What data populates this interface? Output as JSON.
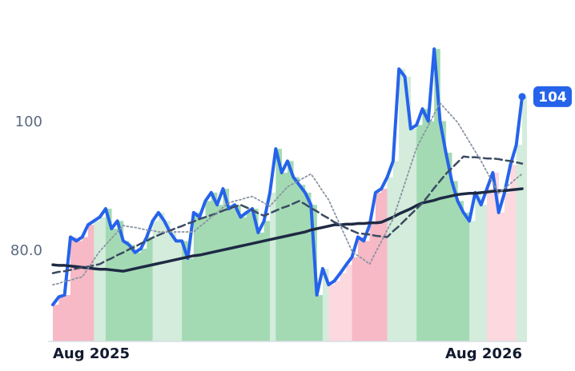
{
  "chart_data": {
    "type": "line",
    "categories": [
      "Aug 2025",
      null,
      null,
      null,
      null,
      null,
      null,
      null,
      null,
      null,
      null,
      null,
      null,
      null,
      null,
      null,
      null,
      null,
      null,
      null,
      null,
      null,
      null,
      null,
      null,
      null,
      null,
      null,
      null,
      null,
      null,
      null,
      null,
      null,
      null,
      null,
      null,
      null,
      null,
      null,
      null,
      null,
      null,
      null,
      null,
      null,
      null,
      null,
      null,
      null,
      null,
      null,
      null,
      null,
      null,
      null,
      null,
      null,
      null,
      null,
      null,
      null,
      null,
      null,
      null,
      null,
      null,
      null,
      null,
      null,
      null,
      null,
      null,
      null,
      null,
      null,
      null,
      null,
      null,
      null,
      "Aug 2026"
    ],
    "ylim": [
      66,
      119
    ],
    "yticks": [
      {
        "value": 80,
        "label": "80.0"
      },
      100
    ],
    "bar_colors": [
      "#f6b9c5",
      "#f6b9c5",
      "#f6b9c5",
      "#f6b9c5",
      "#f6b9c5",
      "#f6b9c5",
      "#f6b9c5",
      "#d3ecdb",
      "#d3ecdb",
      "#a3dab3",
      "#a3dab3",
      "#a3dab3",
      "#a3dab3",
      "#a3dab3",
      "#a3dab3",
      "#a3dab3",
      "#a3dab3",
      "#d3ecdb",
      "#d3ecdb",
      "#d3ecdb",
      "#d3ecdb",
      "#d3ecdb",
      "#a3dab3",
      "#a3dab3",
      "#a3dab3",
      "#a3dab3",
      "#a3dab3",
      "#a3dab3",
      "#a3dab3",
      "#a3dab3",
      "#a3dab3",
      "#a3dab3",
      "#a3dab3",
      "#a3dab3",
      "#a3dab3",
      "#a3dab3",
      "#a3dab3",
      "#d3ecdb",
      "#a3dab3",
      "#a3dab3",
      "#a3dab3",
      "#a3dab3",
      "#a3dab3",
      "#a3dab3",
      "#a3dab3",
      "#a3dab3",
      "#d3ecdb",
      "#fcd8df",
      "#fcd8df",
      "#fcd8df",
      "#fcd8df",
      "#f6b9c5",
      "#f6b9c5",
      "#f6b9c5",
      "#f6b9c5",
      "#f6b9c5",
      "#f6b9c5",
      "#d3ecdb",
      "#d3ecdb",
      "#d3ecdb",
      "#d3ecdb",
      "#d3ecdb",
      "#a3dab3",
      "#a3dab3",
      "#a3dab3",
      "#a3dab3",
      "#a3dab3",
      "#a3dab3",
      "#a3dab3",
      "#a3dab3",
      "#a3dab3",
      "#d3ecdb",
      "#d3ecdb",
      "#d3ecdb",
      "#fcd8df",
      "#fcd8df",
      "#fcd8df",
      "#fcd8df",
      "#fcd8df",
      "#d3ecdb",
      "#d3ecdb"
    ],
    "series": [
      {
        "color": "#2563eb",
        "style": "solid",
        "width": 4,
        "bars": true,
        "values": [
          71.7,
          72.9,
          73.2,
          82.2,
          81.6,
          82.2,
          84.1,
          84.7,
          85.3,
          86.6,
          83.5,
          84.7,
          81.6,
          81.0,
          79.8,
          80.4,
          82.2,
          84.7,
          86.0,
          84.7,
          82.9,
          81.6,
          81.6,
          78.9,
          86.0,
          85.3,
          87.8,
          89.1,
          87.2,
          89.7,
          86.6,
          87.2,
          85.3,
          86.0,
          86.6,
          82.9,
          84.7,
          89.1,
          95.9,
          92.2,
          94.0,
          91.5,
          90.3,
          89.1,
          87.2,
          73.2,
          77.3,
          74.8,
          75.4,
          76.6,
          77.9,
          79.1,
          82.2,
          81.6,
          84.1,
          89.1,
          89.7,
          91.5,
          94.0,
          108.3,
          107.1,
          99.0,
          99.6,
          102.1,
          100.2,
          111.4,
          100.2,
          95.3,
          90.9,
          87.8,
          86.0,
          84.7,
          89.1,
          87.2,
          89.7,
          92.2,
          86.0,
          89.1,
          93.4,
          96.5,
          104
        ]
      },
      {
        "color": "#1e2a44",
        "style": "solid",
        "width": 3.5,
        "bars": false,
        "values": [
          77.9,
          77.8,
          77.8,
          77.7,
          77.6,
          77.5,
          77.4,
          77.3,
          77.2,
          77.2,
          77.1,
          77.0,
          76.9,
          77.1,
          77.3,
          77.5,
          77.7,
          77.9,
          78.1,
          78.3,
          78.5,
          78.7,
          78.9,
          79.1,
          79.3,
          79.4,
          79.6,
          79.8,
          80.0,
          80.2,
          80.4,
          80.6,
          80.8,
          81.0,
          81.2,
          81.4,
          81.6,
          81.8,
          82.0,
          82.2,
          82.4,
          82.6,
          82.8,
          83.0,
          83.3,
          83.5,
          83.7,
          83.9,
          84.1,
          84.1,
          84.2,
          84.2,
          84.3,
          84.3,
          84.4,
          84.4,
          84.5,
          84.9,
          85.3,
          85.8,
          86.2,
          86.6,
          87.1,
          87.5,
          87.7,
          87.9,
          88.2,
          88.4,
          88.6,
          88.8,
          88.9,
          89.0,
          89.0,
          89.1,
          89.2,
          89.3,
          89.4,
          89.4,
          89.5,
          89.6,
          89.7
        ]
      },
      {
        "color": "#3b4a63",
        "style": "dashed",
        "width": 2.5,
        "bars": false,
        "values": [
          76.6,
          76.8,
          76.9,
          77.1,
          77.3,
          77.5,
          77.6,
          77.8,
          78.0,
          78.5,
          78.9,
          79.4,
          79.8,
          80.3,
          80.7,
          81.2,
          81.6,
          82.1,
          82.5,
          82.9,
          83.2,
          83.6,
          83.9,
          84.3,
          84.6,
          85.0,
          85.3,
          85.6,
          85.9,
          86.3,
          86.6,
          86.9,
          87.2,
          86.8,
          86.4,
          85.9,
          85.5,
          85.9,
          86.3,
          86.7,
          87.0,
          87.4,
          87.8,
          87.3,
          86.7,
          86.2,
          85.6,
          85.1,
          84.5,
          84.1,
          83.6,
          83.2,
          82.8,
          82.7,
          82.6,
          82.4,
          82.3,
          82.2,
          83.1,
          83.9,
          84.8,
          85.7,
          86.6,
          87.5,
          88.6,
          89.8,
          90.9,
          92.0,
          92.9,
          93.8,
          94.7,
          94.6,
          94.6,
          94.5,
          94.4,
          94.4,
          94.3,
          94.1,
          94.0,
          93.8,
          93.6
        ]
      },
      {
        "color": "#8a94a3",
        "style": "dotted",
        "width": 1.8,
        "bars": false,
        "values": [
          74.8,
          75.0,
          75.3,
          75.5,
          75.8,
          76.0,
          77.3,
          78.7,
          80.0,
          81.0,
          82.0,
          83.0,
          84.0,
          83.8,
          83.7,
          83.5,
          83.3,
          83.2,
          83.0,
          83.0,
          83.0,
          83.0,
          83.0,
          83.0,
          83.0,
          83.8,
          84.5,
          85.3,
          86.0,
          86.8,
          87.5,
          87.8,
          88.0,
          88.3,
          88.5,
          88.0,
          87.5,
          87.0,
          88.0,
          89.0,
          90.0,
          90.5,
          91.0,
          91.5,
          92.0,
          90.7,
          89.3,
          88.0,
          86.0,
          84.0,
          82.0,
          80.0,
          79.3,
          78.7,
          78.0,
          79.8,
          81.5,
          83.3,
          85.0,
          87.8,
          90.5,
          93.3,
          96.0,
          97.8,
          99.5,
          101.3,
          103.0,
          102.0,
          101.0,
          100.0,
          98.5,
          97.0,
          95.5,
          94.0,
          92.3,
          90.7,
          89.0,
          89.8,
          90.5,
          91.3,
          92.0
        ]
      }
    ]
  }
}
